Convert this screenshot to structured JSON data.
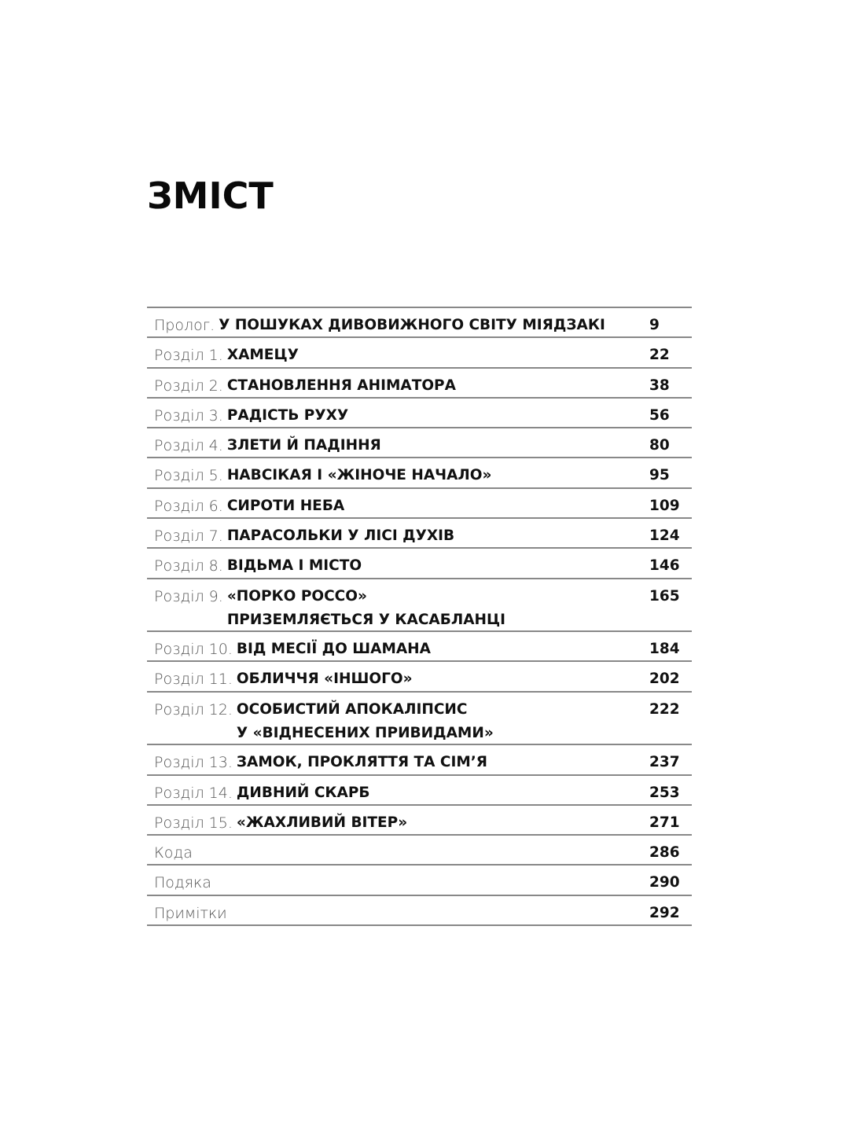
{
  "title": "ЗМІСТ",
  "entries": [
    {
      "label": "Пролог.",
      "title": [
        "У ПОШУКАХ ДИВОВИЖНОГО СВІТУ МІЯДЗАКІ"
      ],
      "page": "9"
    },
    {
      "label": "Розділ 1.",
      "title": [
        "ХАМЕЦУ"
      ],
      "page": "22"
    },
    {
      "label": "Розділ 2.",
      "title": [
        "СТАНОВЛЕННЯ АНІМАТОРА"
      ],
      "page": "38"
    },
    {
      "label": "Розділ 3.",
      "title": [
        "РАДІСТЬ РУХУ"
      ],
      "page": "56"
    },
    {
      "label": "Розділ 4.",
      "title": [
        "ЗЛЕТИ Й ПАДІННЯ"
      ],
      "page": "80"
    },
    {
      "label": "Розділ 5.",
      "title": [
        "НАВСІКАЯ І «ЖІНОЧЕ НАЧАЛО»"
      ],
      "page": "95"
    },
    {
      "label": "Розділ 6.",
      "title": [
        "СИРОТИ НЕБА"
      ],
      "page": "109"
    },
    {
      "label": "Розділ 7.",
      "title": [
        "ПАРАСОЛЬКИ У ЛІСІ ДУХІВ"
      ],
      "page": "124"
    },
    {
      "label": "Розділ 8.",
      "title": [
        "ВІДЬМА І МІСТО"
      ],
      "page": "146"
    },
    {
      "label": "Розділ 9.",
      "title": [
        "«ПОРКО РОССО»",
        "ПРИЗЕМЛЯЄТЬСЯ У КАСАБЛАНЦІ"
      ],
      "page": "165"
    },
    {
      "label": "Розділ 10.",
      "title": [
        "ВІД МЕСІЇ ДО ШАМАНА"
      ],
      "page": "184"
    },
    {
      "label": "Розділ 11.",
      "title": [
        "ОБЛИЧЧЯ «ІНШОГО»"
      ],
      "page": "202"
    },
    {
      "label": "Розділ 12.",
      "title": [
        "ОСОБИСТИЙ АПОКАЛІПСИС",
        "У «ВІДНЕСЕНИХ ПРИВИДАМИ»"
      ],
      "page": "222"
    },
    {
      "label": "Розділ 13.",
      "title": [
        "ЗАМОК, ПРОКЛЯТТЯ ТА СІМ’Я"
      ],
      "page": "237"
    },
    {
      "label": "Розділ 14.",
      "title": [
        "ДИВНИЙ СКАРБ"
      ],
      "page": "253"
    },
    {
      "label": "Розділ 15.",
      "title": [
        "«ЖАХЛИВИЙ ВІТЕР»"
      ],
      "page": "271"
    },
    {
      "label": "Кода",
      "title": [],
      "page": "286"
    },
    {
      "label": "Подяка",
      "title": [],
      "page": "290"
    },
    {
      "label": "Примітки",
      "title": [],
      "page": "292"
    }
  ]
}
